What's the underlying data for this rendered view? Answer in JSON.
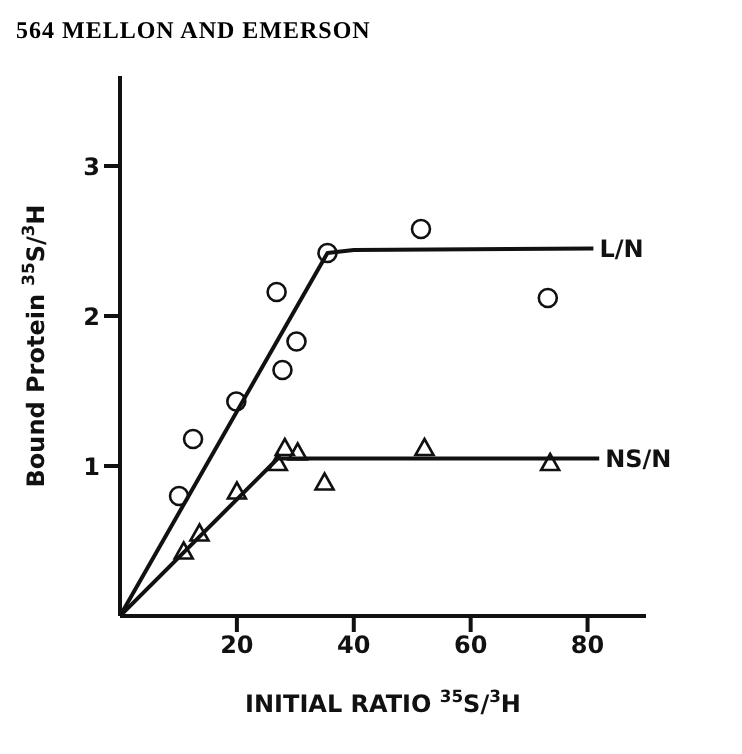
{
  "chart_data": {
    "type": "scatter",
    "annotations": [
      "564 MELLON AND EMERSON"
    ],
    "xlabel": "INITIAL RATIO $^{35}$S/$^{3}$H",
    "ylabel": "Bound Protein $^{35}$S/$^{3}$H",
    "xlim": [
      0,
      90
    ],
    "ylim": [
      0,
      3.6
    ],
    "xticks": [
      20,
      40,
      60,
      80
    ],
    "yticks": [
      1,
      2,
      3
    ],
    "grid": false,
    "legend": false,
    "series": [
      {
        "marker": "circle",
        "color": "#111111",
        "x": [
          10.1,
          12.5,
          19.9,
          26.8,
          27.8,
          30.2,
          35.5,
          51.5,
          73.2
        ],
        "values": [
          0.8,
          1.18,
          1.43,
          2.16,
          1.64,
          1.83,
          2.42,
          2.58,
          2.12
        ]
      },
      {
        "marker": "triangle",
        "color": "#111111",
        "x": [
          10.9,
          13.6,
          20,
          27,
          28.2,
          30.4,
          35,
          52.1,
          73.6
        ],
        "values": [
          0.43,
          0.55,
          0.83,
          1.02,
          1.12,
          1.09,
          0.89,
          1.12,
          1.02
        ]
      },
      {
        "type": "line",
        "name": "L/N",
        "color": "#111111",
        "x": [
          0,
          35.5,
          40,
          81
        ],
        "values": [
          0,
          2.42,
          2.44,
          2.45
        ]
      },
      {
        "type": "line",
        "name": "NS/N",
        "color": "#111111",
        "x": [
          0,
          27,
          82
        ],
        "values": [
          0,
          1.05,
          1.05
        ]
      }
    ]
  }
}
